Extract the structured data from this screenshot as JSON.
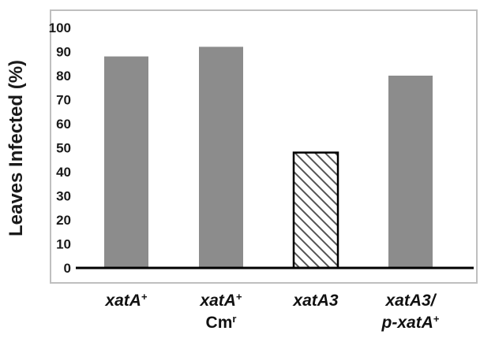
{
  "chart_data": {
    "type": "bar",
    "ylabel": "Leaves Infected (%)",
    "ylim": [
      0,
      100
    ],
    "yticks": [
      0,
      10,
      20,
      30,
      40,
      50,
      60,
      70,
      80,
      90,
      100
    ],
    "grid": false,
    "categories": [
      {
        "lines": [
          [
            {
              "t": "xatA",
              "italic": true
            },
            {
              "t": "+",
              "sup": true
            }
          ]
        ]
      },
      {
        "lines": [
          [
            {
              "t": "xatA",
              "italic": true
            },
            {
              "t": "+",
              "sup": true
            }
          ],
          [
            {
              "t": "Cm"
            },
            {
              "t": "r",
              "sup": true
            }
          ]
        ]
      },
      {
        "lines": [
          [
            {
              "t": "xatA3",
              "italic": true
            }
          ]
        ]
      },
      {
        "lines": [
          [
            {
              "t": "xatA3/",
              "italic": true
            }
          ],
          [
            {
              "t": "p-xatA",
              "italic": true
            },
            {
              "t": "+",
              "sup": true
            }
          ]
        ]
      }
    ],
    "values": [
      88,
      92,
      48,
      80
    ],
    "bar_styles": [
      "solid",
      "solid",
      "hatched",
      "solid"
    ],
    "colors": {
      "bar": "#8c8c8c",
      "hatch": "#555555",
      "frame": "#bfbfbf",
      "axis": "#000000",
      "text": "#111111"
    }
  }
}
